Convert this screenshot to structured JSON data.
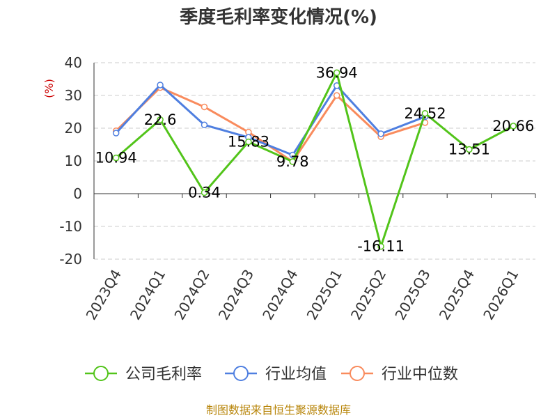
{
  "title": "季度毛利率变化情况(%)",
  "unit_label": "(%)",
  "source": "制图数据来自恒生聚源数据库",
  "colors": {
    "company": "#52c41a",
    "industry_avg": "#4f7fe0",
    "industry_median": "#f98b5d"
  },
  "chart_data": {
    "type": "line",
    "title": "季度毛利率变化情况(%)",
    "ylabel": "(%)",
    "xlabel": "",
    "ylim": [
      -20,
      40
    ],
    "yticks": [
      40,
      30,
      20,
      10,
      0,
      -10,
      -20
    ],
    "grid": true,
    "legend": "bottom",
    "categories": [
      "2023Q4",
      "2024Q1",
      "2024Q2",
      "2024Q3",
      "2024Q4",
      "2025Q1",
      "2025Q2",
      "2025Q3",
      "2025Q4",
      "2026Q1"
    ],
    "series": [
      {
        "name": "公司毛利率",
        "values": [
          10.94,
          22.6,
          0.34,
          15.83,
          9.78,
          36.94,
          -16.11,
          24.52,
          13.51,
          20.66
        ],
        "labels": [
          "10.94",
          "22.6",
          "0.34",
          "15.83",
          "9.78",
          "36.94",
          "-16.11",
          "24.52",
          "13.51",
          "20.66"
        ]
      },
      {
        "name": "行业均值",
        "values": [
          18.5,
          33.2,
          21.0,
          17.2,
          11.8,
          33.0,
          18.3,
          23.5,
          null,
          null
        ]
      },
      {
        "name": "行业中位数",
        "values": [
          19.2,
          32.4,
          26.5,
          18.8,
          9.8,
          30.0,
          17.4,
          21.7,
          null,
          null
        ]
      }
    ]
  }
}
